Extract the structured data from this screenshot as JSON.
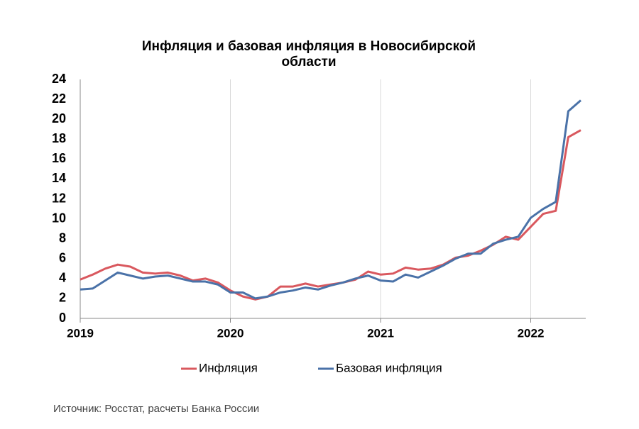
{
  "chart_data": {
    "type": "line",
    "title": "Инфляция и базовая инфляция в Новосибирской области",
    "categories": [
      "2019",
      null,
      null,
      null,
      null,
      null,
      null,
      null,
      null,
      null,
      null,
      null,
      "2020",
      null,
      null,
      null,
      null,
      null,
      null,
      null,
      null,
      null,
      null,
      null,
      "2021",
      null,
      null,
      null,
      null,
      null,
      null,
      null,
      null,
      null,
      null,
      null,
      "2022",
      null,
      null,
      null,
      null
    ],
    "series": [
      {
        "name": "Инфляция",
        "color": "#d9585e",
        "values": [
          3.9,
          4.4,
          5.0,
          5.4,
          5.2,
          4.6,
          4.5,
          4.6,
          4.3,
          3.8,
          4.0,
          3.6,
          2.8,
          2.2,
          1.9,
          2.2,
          3.2,
          3.2,
          3.5,
          3.2,
          3.4,
          3.6,
          3.9,
          4.7,
          4.4,
          4.5,
          5.1,
          4.9,
          5.0,
          5.4,
          6.1,
          6.3,
          6.8,
          7.4,
          8.2,
          7.9,
          9.2,
          10.5,
          10.8,
          18.2,
          18.9
        ]
      },
      {
        "name": "Базовая инфляция",
        "color": "#4a72a8",
        "values": [
          2.9,
          3.0,
          3.8,
          4.6,
          4.3,
          4.0,
          4.2,
          4.3,
          4.0,
          3.7,
          3.7,
          3.4,
          2.6,
          2.6,
          2.0,
          2.2,
          2.6,
          2.8,
          3.1,
          2.9,
          3.3,
          3.6,
          4.0,
          4.3,
          3.8,
          3.7,
          4.4,
          4.1,
          4.7,
          5.3,
          6.0,
          6.5,
          6.5,
          7.5,
          7.9,
          8.2,
          10.1,
          11.0,
          11.7,
          20.8,
          21.9
        ]
      }
    ],
    "ylim": [
      0,
      24
    ],
    "yticks": [
      0,
      2,
      4,
      6,
      8,
      10,
      12,
      14,
      16,
      18,
      20,
      22,
      24
    ],
    "grid": true,
    "legend": "bottom"
  },
  "source": "Источник: Росстат, расчеты Банка России"
}
